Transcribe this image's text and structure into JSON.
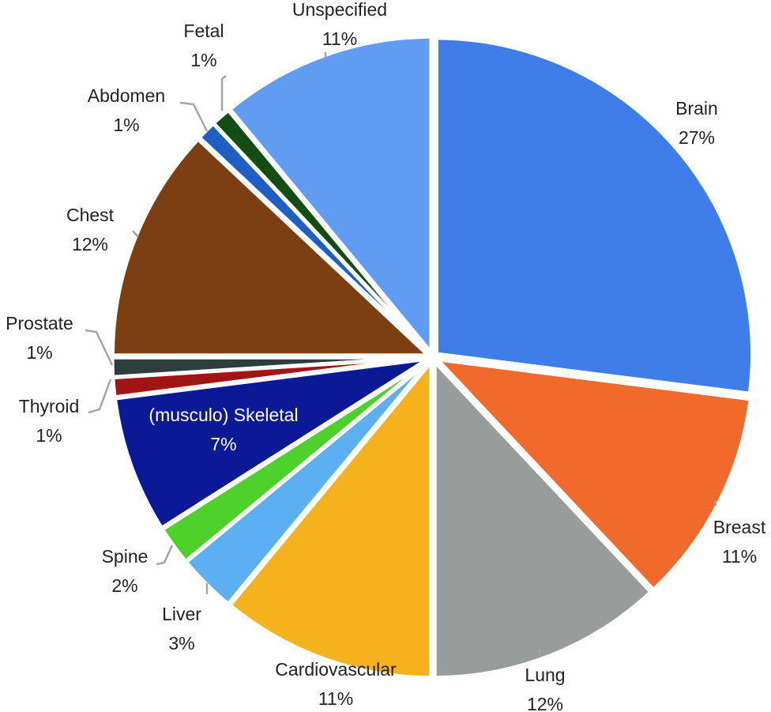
{
  "chart_data": {
    "type": "pie",
    "title": "",
    "start_angle_deg": 0,
    "direction": "clockwise",
    "slices": [
      {
        "label": "Brain",
        "value": 27,
        "value_label": "27%",
        "color": "#3f7ee8"
      },
      {
        "label": "Breast",
        "value": 11,
        "value_label": "11%",
        "color": "#f06a2c"
      },
      {
        "label": "Lung",
        "value": 12,
        "value_label": "12%",
        "color": "#979d9a"
      },
      {
        "label": "Cardiovascular",
        "value": 11,
        "value_label": "11%",
        "color": "#f6b21c"
      },
      {
        "label": "Liver",
        "value": 3,
        "value_label": "3%",
        "color": "#5ab0f0"
      },
      {
        "label": "Spine",
        "value": 2,
        "value_label": "2%",
        "color": "#4bd12a"
      },
      {
        "label": "(musculo) Skeletal",
        "value": 7,
        "value_label": "7%",
        "color": "#0a1a96"
      },
      {
        "label": "Thyroid",
        "value": 1,
        "value_label": "1%",
        "color": "#a11515"
      },
      {
        "label": "Prostate",
        "value": 1,
        "value_label": "1%",
        "color": "#2c3e3e"
      },
      {
        "label": "Chest",
        "value": 12,
        "value_label": "12%",
        "color": "#7b3f12"
      },
      {
        "label": "Abdomen",
        "value": 1,
        "value_label": "1%",
        "color": "#1e5fc6"
      },
      {
        "label": "Fetal",
        "value": 1,
        "value_label": "1%",
        "color": "#124d14"
      },
      {
        "label": "Unspecified",
        "value": 11,
        "value_label": "11%",
        "color": "#5f9cf2"
      }
    ]
  }
}
